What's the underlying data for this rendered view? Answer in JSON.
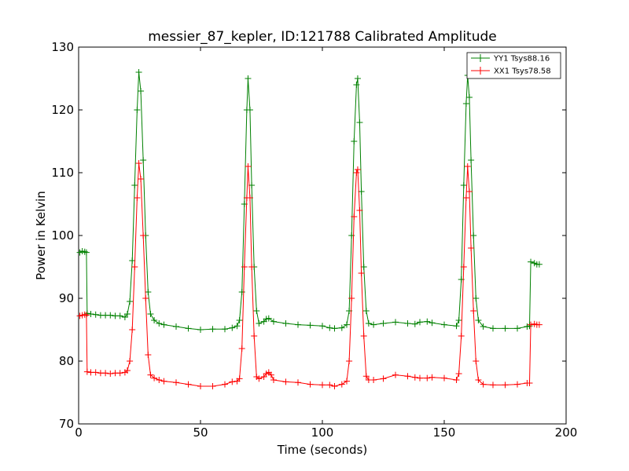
{
  "chart_data": {
    "type": "line",
    "title": "messier_87_kepler, ID:121788 Calibrated Amplitude",
    "xlabel": "Time (seconds)",
    "ylabel": "Power in Kelvin",
    "xlim": [
      0,
      200
    ],
    "ylim": [
      70,
      130
    ],
    "xticks": [
      "0",
      "50",
      "100",
      "150",
      "200"
    ],
    "yticks": [
      "70",
      "80",
      "90",
      "100",
      "110",
      "120",
      "130"
    ],
    "grid": false,
    "legend_position": "top-right",
    "series": [
      {
        "name": "YY1 Tsys88.16",
        "color": "#008000",
        "marker": "+",
        "points": [
          [
            0.5,
            97.3
          ],
          [
            1.5,
            97.5
          ],
          [
            2.5,
            97.4
          ],
          [
            3.2,
            97.3
          ],
          [
            3.5,
            87.6
          ],
          [
            5,
            87.5
          ],
          [
            7,
            87.4
          ],
          [
            9,
            87.3
          ],
          [
            11,
            87.3
          ],
          [
            13,
            87.3
          ],
          [
            15,
            87.2
          ],
          [
            17,
            87.2
          ],
          [
            19,
            87.0
          ],
          [
            20,
            87.5
          ],
          [
            21,
            89.5
          ],
          [
            22,
            96
          ],
          [
            23,
            108
          ],
          [
            24,
            120
          ],
          [
            24.7,
            126
          ],
          [
            25.5,
            123
          ],
          [
            26.5,
            112
          ],
          [
            27.5,
            100
          ],
          [
            28.5,
            91
          ],
          [
            29.5,
            87.5
          ],
          [
            31,
            86.5
          ],
          [
            33,
            86
          ],
          [
            35,
            85.8
          ],
          [
            40,
            85.5
          ],
          [
            45,
            85.2
          ],
          [
            50,
            85.0
          ],
          [
            55,
            85.1
          ],
          [
            60,
            85.1
          ],
          [
            63,
            85.3
          ],
          [
            65,
            85.6
          ],
          [
            66,
            86.5
          ],
          [
            67,
            91
          ],
          [
            68,
            105
          ],
          [
            69,
            120
          ],
          [
            69.5,
            125
          ],
          [
            70.3,
            120
          ],
          [
            71,
            108
          ],
          [
            72,
            95
          ],
          [
            73,
            88
          ],
          [
            74,
            86
          ],
          [
            76,
            86.3
          ],
          [
            77,
            86.7
          ],
          [
            78,
            86.8
          ],
          [
            80,
            86.3
          ],
          [
            85,
            86.0
          ],
          [
            90,
            85.8
          ],
          [
            95,
            85.7
          ],
          [
            100,
            85.6
          ],
          [
            103,
            85.3
          ],
          [
            105,
            85.2
          ],
          [
            108,
            85.3
          ],
          [
            110,
            85.8
          ],
          [
            111,
            88
          ],
          [
            112,
            100
          ],
          [
            113,
            115
          ],
          [
            114,
            124
          ],
          [
            114.5,
            125
          ],
          [
            115.3,
            118
          ],
          [
            116,
            107
          ],
          [
            117,
            95
          ],
          [
            118,
            88
          ],
          [
            119,
            86
          ],
          [
            121,
            85.8
          ],
          [
            125,
            86.0
          ],
          [
            130,
            86.2
          ],
          [
            135,
            86.0
          ],
          [
            138,
            85.9
          ],
          [
            140,
            86.2
          ],
          [
            143,
            86.3
          ],
          [
            145,
            86.1
          ],
          [
            150,
            85.8
          ],
          [
            155,
            85.6
          ],
          [
            156,
            86.5
          ],
          [
            157,
            93
          ],
          [
            158,
            108
          ],
          [
            159,
            121
          ],
          [
            159.6,
            125.5
          ],
          [
            160.3,
            122
          ],
          [
            161,
            112
          ],
          [
            162,
            100
          ],
          [
            163,
            90
          ],
          [
            164,
            86.5
          ],
          [
            166,
            85.5
          ],
          [
            170,
            85.2
          ],
          [
            175,
            85.2
          ],
          [
            180,
            85.2
          ],
          [
            184,
            85.5
          ],
          [
            185,
            85.6
          ],
          [
            185.5,
            95.8
          ],
          [
            187,
            95.6
          ],
          [
            188,
            95.4
          ],
          [
            189,
            95.4
          ]
        ]
      },
      {
        "name": "XX1 Tsys78.58",
        "color": "#ff0000",
        "marker": "+",
        "points": [
          [
            0.5,
            87.2
          ],
          [
            1.5,
            87.3
          ],
          [
            2.5,
            87.4
          ],
          [
            3.2,
            87.3
          ],
          [
            3.5,
            78.3
          ],
          [
            5,
            78.2
          ],
          [
            7,
            78.2
          ],
          [
            9,
            78.1
          ],
          [
            11,
            78.1
          ],
          [
            13,
            78.0
          ],
          [
            15,
            78.1
          ],
          [
            17,
            78.1
          ],
          [
            19,
            78.2
          ],
          [
            20,
            78.5
          ],
          [
            21,
            80
          ],
          [
            22,
            85
          ],
          [
            23,
            95
          ],
          [
            24,
            106
          ],
          [
            24.7,
            111.5
          ],
          [
            25.5,
            109
          ],
          [
            26.5,
            100
          ],
          [
            27.5,
            90
          ],
          [
            28.5,
            81
          ],
          [
            29.5,
            77.8
          ],
          [
            31,
            77.3
          ],
          [
            33,
            77.0
          ],
          [
            35,
            76.8
          ],
          [
            40,
            76.6
          ],
          [
            45,
            76.3
          ],
          [
            50,
            76.0
          ],
          [
            55,
            76.0
          ],
          [
            60,
            76.3
          ],
          [
            63,
            76.7
          ],
          [
            65,
            76.8
          ],
          [
            66,
            77.2
          ],
          [
            67,
            82
          ],
          [
            68,
            95
          ],
          [
            69,
            106
          ],
          [
            69.5,
            111
          ],
          [
            70.3,
            106
          ],
          [
            71,
            95
          ],
          [
            72,
            84
          ],
          [
            73,
            77.5
          ],
          [
            74,
            77.2
          ],
          [
            76,
            77.5
          ],
          [
            77,
            78.0
          ],
          [
            78,
            78.2
          ],
          [
            79,
            77.8
          ],
          [
            80,
            77.0
          ],
          [
            85,
            76.7
          ],
          [
            90,
            76.6
          ],
          [
            95,
            76.3
          ],
          [
            100,
            76.2
          ],
          [
            103,
            76.2
          ],
          [
            105,
            76.0
          ],
          [
            108,
            76.3
          ],
          [
            110,
            76.8
          ],
          [
            111,
            80
          ],
          [
            112,
            90
          ],
          [
            113,
            103
          ],
          [
            114,
            110
          ],
          [
            114.5,
            110.5
          ],
          [
            115.3,
            104
          ],
          [
            116,
            94
          ],
          [
            117,
            84
          ],
          [
            118,
            77.6
          ],
          [
            119,
            77.0
          ],
          [
            121,
            77.0
          ],
          [
            125,
            77.2
          ],
          [
            130,
            77.8
          ],
          [
            135,
            77.6
          ],
          [
            138,
            77.4
          ],
          [
            140,
            77.3
          ],
          [
            143,
            77.3
          ],
          [
            145,
            77.4
          ],
          [
            150,
            77.3
          ],
          [
            155,
            77.0
          ],
          [
            156,
            78
          ],
          [
            157,
            84
          ],
          [
            158,
            95
          ],
          [
            159,
            106
          ],
          [
            159.6,
            111
          ],
          [
            160.3,
            107
          ],
          [
            161,
            98
          ],
          [
            162,
            88
          ],
          [
            163,
            80
          ],
          [
            164,
            77
          ],
          [
            166,
            76.3
          ],
          [
            170,
            76.2
          ],
          [
            175,
            76.2
          ],
          [
            180,
            76.3
          ],
          [
            184,
            76.5
          ],
          [
            185,
            76.5
          ],
          [
            185.5,
            85.8
          ],
          [
            187,
            85.9
          ],
          [
            188,
            85.8
          ],
          [
            189,
            85.8
          ]
        ]
      }
    ]
  }
}
